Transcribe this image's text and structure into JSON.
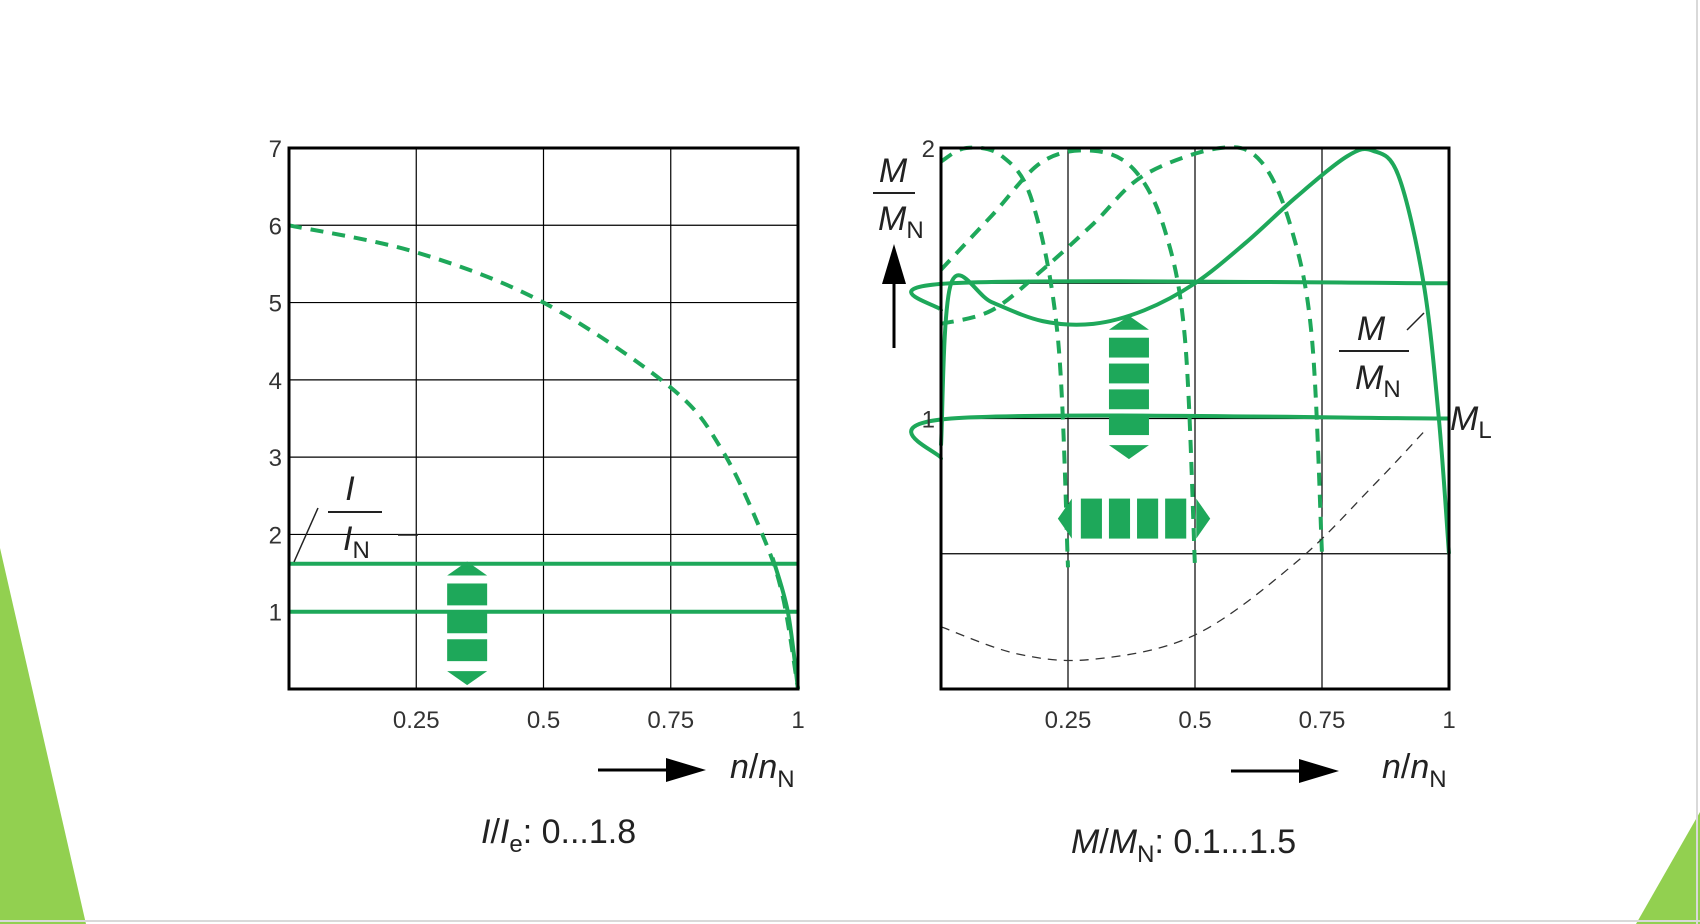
{
  "colors": {
    "curve": "#1ea85a",
    "grid": "#000000",
    "slide_accent": "#92d050",
    "dashed_gray": "#333333"
  },
  "charts_text": {
    "left": {
      "y_label_num": "I",
      "y_label_den": "I",
      "y_label_den_sub": "N",
      "x_label_n": "n",
      "x_label_sep": "/",
      "x_label_nN": "n",
      "x_label_sub": "N",
      "caption_I": "I",
      "caption_sep": "/",
      "caption_Ie": "I",
      "caption_sub": "e",
      "caption_range": ": 0...1.8"
    },
    "right": {
      "y_label_num": "M",
      "y_label_den": "M",
      "y_label_den_sub": "N",
      "curve_label_num": "M",
      "curve_label_den": "M",
      "curve_label_den_sub": "N",
      "load_label": "M",
      "load_label_sub": "L",
      "x_label_n": "n",
      "x_label_sep": "/",
      "x_label_nN": "n",
      "x_label_sub": "N",
      "caption_M": "M",
      "caption_sep": "/",
      "caption_MN": "M",
      "caption_sub": "N",
      "caption_range": ": 0.1...1.5"
    }
  },
  "chart_data": [
    {
      "type": "line",
      "x_range": [
        0,
        1
      ],
      "y_range": [
        0,
        7
      ],
      "x_ticks": [
        "0.25",
        "0.5",
        "0.75",
        "1"
      ],
      "y_ticks": [
        "1",
        "2",
        "3",
        "4",
        "5",
        "6",
        "7"
      ],
      "grid": true,
      "series": [
        {
          "style": "dashed",
          "points": [
            [
              0,
              6.0
            ],
            [
              0.25,
              5.65
            ],
            [
              0.5,
              5.0
            ],
            [
              0.75,
              3.9
            ],
            [
              0.85,
              3.1
            ],
            [
              0.93,
              2.0
            ],
            [
              0.97,
              1.2
            ],
            [
              1.0,
              0
            ]
          ]
        },
        {
          "style": "solid",
          "points": [
            [
              0,
              1.62
            ],
            [
              1.0,
              1.62
            ]
          ]
        },
        {
          "style": "solid",
          "points": [
            [
              0,
              1.0
            ],
            [
              1.0,
              1.0
            ]
          ]
        },
        {
          "style": "solid",
          "points": [
            [
              0.95,
              1.7
            ],
            [
              0.98,
              1.0
            ],
            [
              1.0,
              0
            ]
          ]
        }
      ],
      "arrows": [
        {
          "direction": "vertical",
          "x": 0.35,
          "y_from": 0.05,
          "y_to": 1.65
        }
      ]
    },
    {
      "type": "line",
      "x_range": [
        0,
        1
      ],
      "y_range": [
        0,
        2
      ],
      "x_ticks": [
        "0.25",
        "0.5",
        "0.75",
        "1"
      ],
      "y_ticks": [
        "1",
        "2"
      ],
      "grid": true,
      "series": [
        {
          "style": "solid",
          "points": [
            [
              0,
              0.85
            ],
            [
              0.02,
              1.0
            ],
            [
              1.0,
              1.0
            ]
          ]
        },
        {
          "style": "solid",
          "points": [
            [
              0,
              1.4
            ],
            [
              0.02,
              1.5
            ],
            [
              1.0,
              1.5
            ]
          ]
        },
        {
          "style": "solid",
          "points": [
            [
              0,
              0.9
            ],
            [
              0.02,
              1.5
            ],
            [
              0.1,
              1.43
            ],
            [
              0.2,
              1.36
            ],
            [
              0.3,
              1.35
            ],
            [
              0.4,
              1.4
            ],
            [
              0.5,
              1.5
            ],
            [
              0.6,
              1.65
            ],
            [
              0.7,
              1.82
            ],
            [
              0.8,
              1.97
            ],
            [
              0.85,
              1.99
            ],
            [
              0.9,
              1.9
            ],
            [
              0.95,
              1.5
            ],
            [
              0.98,
              1.0
            ],
            [
              1.0,
              0.5
            ]
          ]
        },
        {
          "style": "dashed",
          "points": [
            [
              0,
              1.95
            ],
            [
              0.05,
              2.0
            ],
            [
              0.12,
              1.97
            ],
            [
              0.18,
              1.8
            ],
            [
              0.23,
              1.3
            ],
            [
              0.25,
              0.45
            ]
          ]
        },
        {
          "style": "dashed",
          "points": [
            [
              0,
              1.55
            ],
            [
              0.1,
              1.75
            ],
            [
              0.2,
              1.95
            ],
            [
              0.3,
              1.99
            ],
            [
              0.38,
              1.92
            ],
            [
              0.44,
              1.7
            ],
            [
              0.48,
              1.3
            ],
            [
              0.5,
              0.45
            ]
          ]
        },
        {
          "style": "dashed",
          "points": [
            [
              0,
              1.35
            ],
            [
              0.1,
              1.4
            ],
            [
              0.2,
              1.55
            ],
            [
              0.3,
              1.72
            ],
            [
              0.4,
              1.9
            ],
            [
              0.55,
              2.0
            ],
            [
              0.63,
              1.95
            ],
            [
              0.69,
              1.7
            ],
            [
              0.73,
              1.3
            ],
            [
              0.75,
              0.5
            ]
          ]
        },
        {
          "style": "dashed-thin",
          "points": [
            [
              0,
              0.23
            ],
            [
              0.15,
              0.13
            ],
            [
              0.3,
              0.11
            ],
            [
              0.5,
              0.2
            ],
            [
              0.7,
              0.47
            ],
            [
              0.85,
              0.75
            ],
            [
              0.95,
              0.95
            ]
          ]
        }
      ],
      "arrows": [
        {
          "direction": "vertical",
          "x": 0.37,
          "y_from": 0.85,
          "y_to": 1.38
        },
        {
          "direction": "horizontal",
          "y": 0.63,
          "x_from": 0.23,
          "x_to": 0.53
        }
      ]
    }
  ]
}
